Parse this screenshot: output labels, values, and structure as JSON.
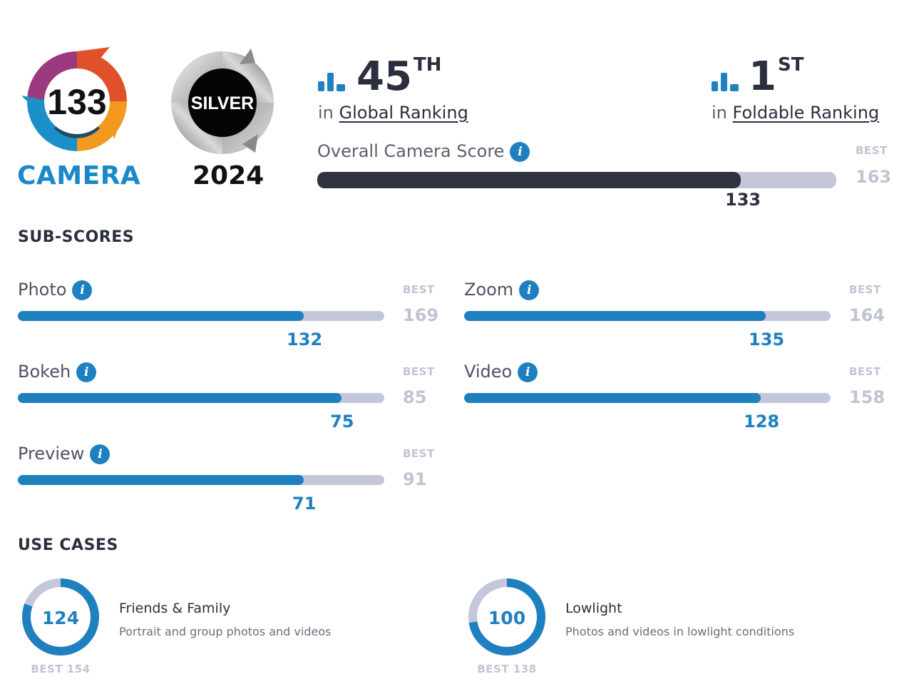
{
  "header": {
    "camera_score": "133",
    "camera_word": "CAMERA",
    "award": "SILVER",
    "award_year": "2024",
    "colors": {
      "accent": "#1a88c9",
      "dark": "#2b2f3d",
      "track": "#c3c7d9"
    }
  },
  "rankings": {
    "global": {
      "number": "45",
      "suffix": "TH",
      "prefix": "in",
      "link": "Global Ranking",
      "icon": "bar-chart-icon"
    },
    "foldable": {
      "number": "1",
      "suffix": "ST",
      "prefix": "in",
      "link": "Foldable Ranking",
      "icon": "bar-chart-icon"
    }
  },
  "overall": {
    "label": "Overall Camera Score",
    "score": 133,
    "score_text": "133",
    "best_label": "BEST",
    "best": 163,
    "best_text": "163"
  },
  "subscores": {
    "title": "SUB-SCORES",
    "items": [
      {
        "key": "photo",
        "label": "Photo",
        "value": 132,
        "value_text": "132",
        "best": 169,
        "best_text": "169",
        "best_label": "BEST"
      },
      {
        "key": "zoom",
        "label": "Zoom",
        "value": 135,
        "value_text": "135",
        "best": 164,
        "best_text": "164",
        "best_label": "BEST"
      },
      {
        "key": "bokeh",
        "label": "Bokeh",
        "value": 75,
        "value_text": "75",
        "best": 85,
        "best_text": "85",
        "best_label": "BEST"
      },
      {
        "key": "video",
        "label": "Video",
        "value": 128,
        "value_text": "128",
        "best": 158,
        "best_text": "158",
        "best_label": "BEST"
      },
      {
        "key": "preview",
        "label": "Preview",
        "value": 71,
        "value_text": "71",
        "best": 91,
        "best_text": "91",
        "best_label": "BEST"
      }
    ]
  },
  "use_cases": {
    "title": "USE CASES",
    "items": [
      {
        "key": "friends",
        "title": "Friends & Family",
        "desc": "Portrait and group photos and videos",
        "value": 124,
        "value_text": "124",
        "best": 154,
        "best_text": "BEST 154"
      },
      {
        "key": "lowlight",
        "title": "Lowlight",
        "desc": "Photos and videos in lowlight conditions",
        "value": 100,
        "value_text": "100",
        "best": 138,
        "best_text": "BEST 138"
      }
    ]
  }
}
